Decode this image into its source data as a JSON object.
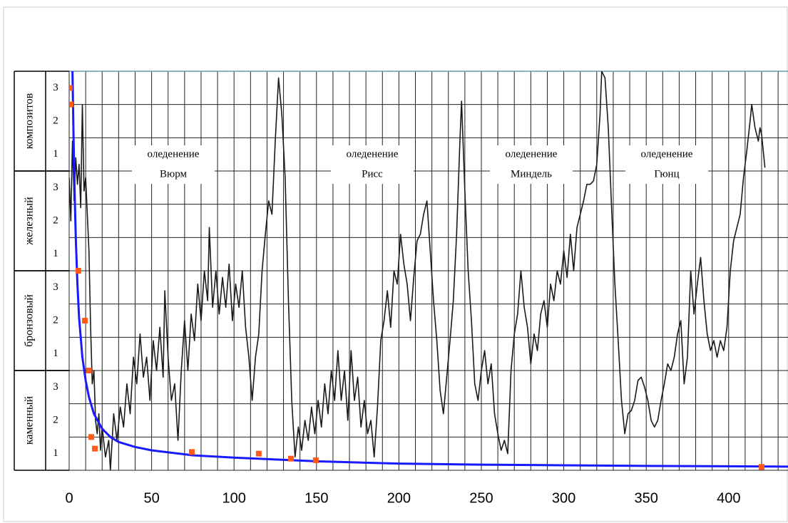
{
  "chart_data": {
    "type": "line",
    "xlim": [
      0,
      436
    ],
    "ylim": [
      0,
      12
    ],
    "xticks": [
      0,
      50,
      100,
      150,
      200,
      250,
      300,
      350,
      400
    ],
    "xgrid": [
      0,
      10,
      20,
      30,
      40,
      50,
      60,
      70,
      80,
      90,
      100,
      110,
      120,
      130,
      140,
      150,
      160,
      170,
      180,
      190,
      200,
      210,
      220,
      230,
      240,
      250,
      260,
      270,
      280,
      290,
      300,
      310,
      320,
      330,
      340,
      350,
      360,
      370,
      380,
      390,
      400,
      410,
      420,
      430
    ],
    "ygrid": [
      0,
      1,
      2,
      3,
      4,
      5,
      6,
      7,
      8,
      9,
      10,
      11,
      12
    ],
    "yticks": [
      {
        "value": 0.5,
        "label": "1"
      },
      {
        "value": 1.5,
        "label": "2"
      },
      {
        "value": 2.5,
        "label": "3"
      },
      {
        "value": 3.5,
        "label": "1"
      },
      {
        "value": 4.5,
        "label": "2"
      },
      {
        "value": 5.5,
        "label": "3"
      },
      {
        "value": 6.5,
        "label": "1"
      },
      {
        "value": 7.5,
        "label": "2"
      },
      {
        "value": 8.5,
        "label": "3"
      },
      {
        "value": 9.5,
        "label": "1"
      },
      {
        "value": 10.5,
        "label": "2"
      },
      {
        "value": 11.5,
        "label": "3"
      }
    ],
    "y_groups": [
      {
        "label": "каменный",
        "range": [
          0,
          3
        ]
      },
      {
        "label": "бронзовый",
        "range": [
          3,
          6
        ]
      },
      {
        "label": "железный",
        "range": [
          6,
          9
        ]
      },
      {
        "label": "композитов",
        "range": [
          9,
          12
        ]
      }
    ],
    "annotations": [
      [
        "оледенение",
        "Вюрм"
      ],
      [
        "оледенение",
        "Рисс"
      ],
      [
        "оледенение",
        "Миндель"
      ],
      [
        "оледенение",
        "Гюнц"
      ]
    ],
    "grid": true,
    "series": [
      {
        "type": "line",
        "color": "#1a1a1a",
        "x": [
          0,
          1,
          2,
          3,
          4,
          5,
          6,
          7,
          8,
          9,
          10,
          11,
          12,
          13,
          14,
          15,
          16,
          17,
          18,
          19,
          20,
          22,
          24,
          25,
          27,
          29,
          31,
          33,
          35,
          37,
          39,
          41,
          43,
          45,
          47,
          49,
          51,
          53,
          55,
          57,
          58,
          60,
          62,
          64,
          66,
          68,
          70,
          72,
          74,
          76,
          78,
          80,
          82,
          84,
          85,
          87,
          89,
          91,
          93,
          95,
          97,
          99,
          101,
          103,
          105,
          107,
          109,
          111,
          113,
          115,
          117,
          119,
          121,
          123,
          125,
          127,
          129,
          131,
          133,
          135,
          137,
          139,
          141,
          143,
          145,
          147,
          149,
          151,
          153,
          155,
          157,
          159,
          161,
          163,
          165,
          167,
          169,
          171,
          173,
          175,
          177,
          179,
          181,
          183,
          185,
          187,
          189,
          191,
          193,
          195,
          197,
          199,
          201,
          203,
          205,
          207,
          209,
          211,
          213,
          215,
          217,
          219,
          221,
          223,
          225,
          227,
          229,
          231,
          233,
          235,
          237,
          238,
          240,
          242,
          244,
          246,
          248,
          250,
          252,
          254,
          256,
          258,
          260,
          262,
          264,
          266,
          268,
          270,
          272,
          274,
          276,
          278,
          280,
          282,
          284,
          286,
          288,
          290,
          292,
          294,
          296,
          298,
          300,
          302,
          304,
          306,
          308,
          310,
          312,
          314,
          316,
          318,
          320,
          322,
          323,
          325,
          327,
          329,
          331,
          333,
          335,
          337,
          339,
          341,
          343,
          345,
          347,
          349,
          351,
          353,
          355,
          357,
          359,
          361,
          363,
          365,
          367,
          369,
          371,
          373,
          375,
          377,
          379,
          381,
          383,
          385,
          387,
          389,
          391,
          393,
          395,
          397,
          399,
          401,
          403,
          405,
          407,
          409,
          411,
          413,
          414,
          416,
          418,
          419,
          420,
          422
        ],
        "values": [
          8.8,
          7.5,
          9.9,
          8.1,
          9.4,
          8.6,
          9.2,
          7.9,
          11.0,
          8.4,
          8.8,
          7.7,
          6.6,
          4.3,
          2.6,
          3.0,
          1.5,
          1.1,
          1.7,
          0.6,
          1.3,
          0.4,
          0.9,
          0.0,
          1.7,
          0.9,
          1.9,
          1.3,
          2.6,
          1.7,
          3.4,
          2.6,
          4.1,
          2.8,
          3.4,
          2.1,
          3.9,
          3.0,
          4.3,
          2.8,
          5.4,
          3.4,
          2.1,
          2.6,
          0.9,
          3.0,
          4.5,
          3.0,
          4.7,
          3.9,
          5.6,
          4.5,
          6.0,
          5.1,
          7.3,
          4.9,
          6.0,
          4.7,
          5.8,
          4.9,
          6.2,
          4.5,
          5.6,
          4.9,
          6.0,
          4.3,
          3.4,
          2.1,
          3.4,
          4.1,
          6.0,
          7.1,
          8.1,
          7.7,
          9.9,
          11.8,
          10.7,
          8.8,
          5.1,
          2.1,
          0.4,
          1.3,
          0.6,
          1.5,
          0.9,
          1.9,
          1.1,
          2.1,
          1.3,
          2.6,
          1.7,
          3.0,
          2.1,
          3.6,
          2.1,
          3.0,
          1.5,
          3.6,
          2.1,
          2.8,
          1.3,
          2.1,
          1.1,
          1.5,
          0.4,
          1.9,
          3.9,
          4.5,
          5.4,
          4.3,
          6.0,
          5.6,
          7.1,
          6.2,
          5.6,
          4.5,
          5.8,
          6.9,
          7.1,
          7.7,
          8.1,
          6.6,
          5.1,
          3.9,
          2.4,
          1.7,
          2.8,
          3.9,
          5.1,
          7.1,
          9.9,
          11.1,
          8.4,
          6.0,
          4.5,
          2.6,
          2.1,
          3.0,
          3.6,
          2.6,
          3.2,
          1.7,
          1.1,
          0.6,
          0.9,
          0.5,
          3.0,
          4.1,
          4.7,
          6.0,
          4.9,
          4.3,
          3.2,
          4.1,
          3.6,
          4.7,
          5.1,
          4.3,
          5.6,
          5.1,
          6.0,
          5.6,
          6.6,
          5.8,
          7.1,
          6.0,
          7.3,
          7.7,
          8.1,
          8.6,
          8.6,
          8.7,
          9.2,
          10.7,
          12.0,
          11.8,
          10.3,
          7.9,
          5.6,
          3.9,
          2.1,
          1.1,
          1.7,
          1.8,
          2.1,
          2.7,
          2.8,
          2.5,
          2.1,
          1.5,
          1.3,
          1.5,
          2.1,
          2.6,
          3.2,
          3.0,
          3.4,
          4.1,
          4.5,
          2.6,
          3.4,
          6.0,
          4.7,
          5.6,
          6.4,
          5.1,
          4.1,
          3.6,
          3.9,
          3.4,
          3.9,
          3.6,
          4.3,
          6.0,
          6.9,
          7.3,
          7.7,
          8.8,
          9.6,
          10.5,
          11.0,
          10.3,
          9.9,
          10.3,
          10.1,
          9.1
        ]
      },
      {
        "type": "line",
        "color": "#1a1aff",
        "x": [
          2,
          3,
          4,
          5,
          6,
          8,
          10,
          12,
          15,
          20,
          25,
          30,
          40,
          50,
          75,
          100,
          150,
          200,
          250,
          300,
          350,
          400,
          436
        ],
        "values": [
          12,
          9,
          7,
          5.6,
          4.6,
          3.4,
          2.7,
          2.2,
          1.7,
          1.25,
          1.0,
          0.85,
          0.7,
          0.6,
          0.45,
          0.38,
          0.27,
          0.2,
          0.17,
          0.15,
          0.13,
          0.12,
          0.11
        ]
      },
      {
        "type": "scatter",
        "color": "#ff5a1a",
        "x": [
          0.4,
          0.9,
          5.6,
          9.5,
          12,
          13.4,
          15.6,
          74.4,
          115,
          134.5,
          149.6,
          420
        ],
        "values": [
          11.5,
          11.0,
          6.0,
          4.5,
          3.0,
          1.0,
          0.65,
          0.55,
          0.5,
          0.35,
          0.3,
          0.1
        ]
      }
    ]
  }
}
